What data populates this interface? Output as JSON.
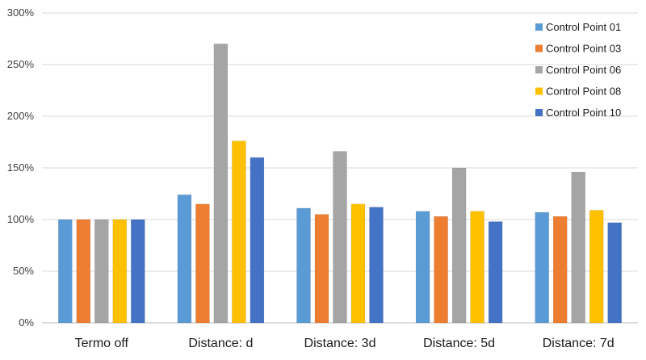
{
  "chart_data": {
    "type": "bar",
    "title": "",
    "xlabel": "",
    "ylabel": "",
    "ylim": [
      0,
      300
    ],
    "y_ticks": [
      "0%",
      "50%",
      "100%",
      "150%",
      "200%",
      "250%",
      "300%"
    ],
    "y_tick_values": [
      0,
      50,
      100,
      150,
      200,
      250,
      300
    ],
    "grid": true,
    "legend_position": "top-right",
    "categories": [
      "Termo off",
      "Distance: d",
      "Distance: 3d",
      "Distance: 5d",
      "Distance: 7d"
    ],
    "series": [
      {
        "name": "Control Point 01",
        "color": "#5b9bd5",
        "values": [
          100,
          124,
          111,
          108,
          107
        ]
      },
      {
        "name": "Control Point 03",
        "color": "#ed7d31",
        "values": [
          100,
          115,
          105,
          103,
          103
        ]
      },
      {
        "name": "Control Point 06",
        "color": "#a5a5a5",
        "values": [
          100,
          270,
          166,
          150,
          146
        ]
      },
      {
        "name": "Control Point 08",
        "color": "#ffc000",
        "values": [
          100,
          176,
          115,
          108,
          109
        ]
      },
      {
        "name": "Control Point 10",
        "color": "#4472c4",
        "values": [
          100,
          160,
          112,
          98,
          97
        ]
      }
    ]
  }
}
